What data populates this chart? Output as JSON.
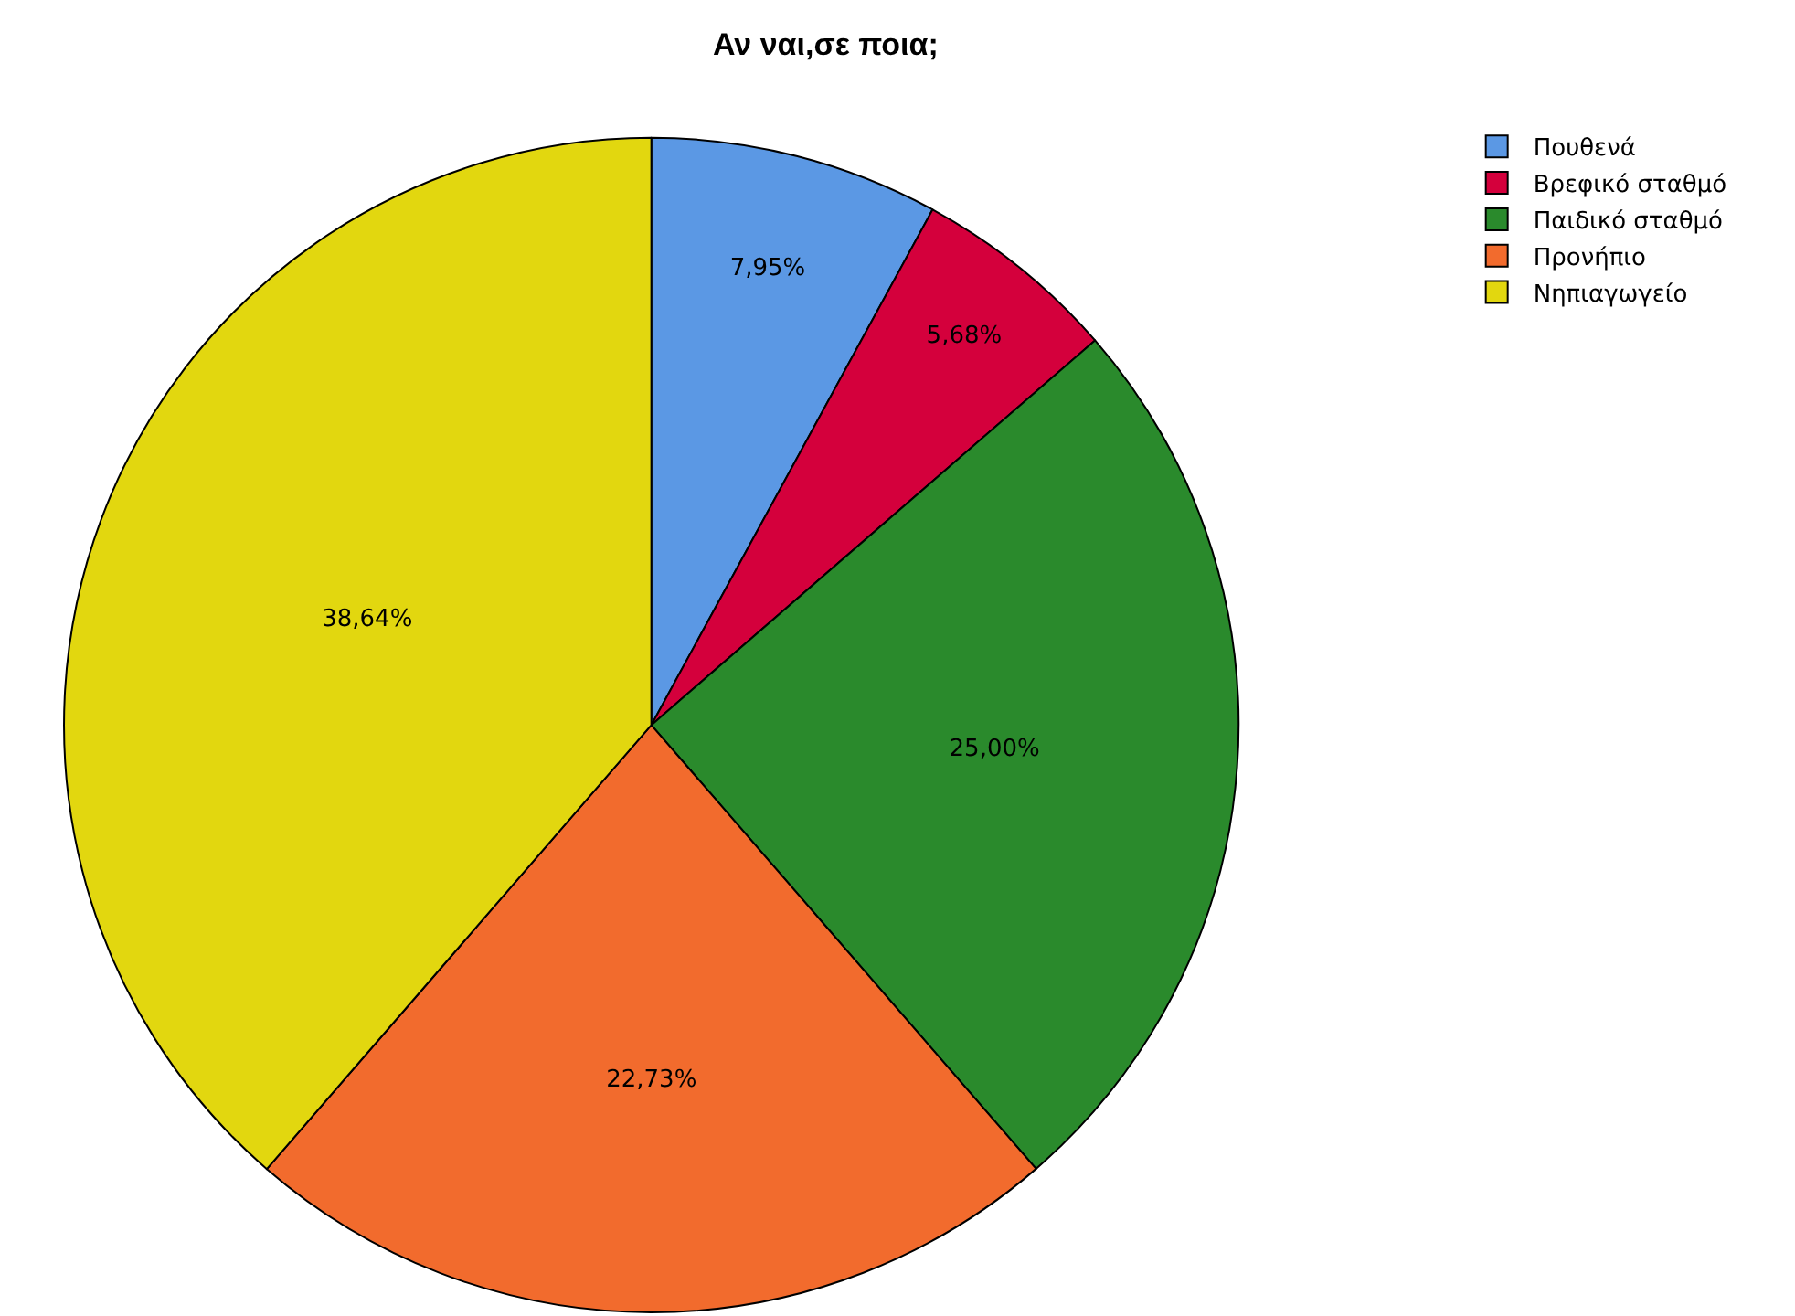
{
  "chart_data": {
    "type": "pie",
    "title": "Αν ναι,σε ποια;",
    "categories": [
      "Πουθενά",
      "Βρεφικό σταθμό",
      "Παιδικό σταθμό",
      "Προνήπιο",
      "Νηπιαγωγείο"
    ],
    "values": [
      7.95,
      5.68,
      25.0,
      22.73,
      38.64
    ],
    "colors": [
      "#5b98e4",
      "#d4003c",
      "#2a8a2c",
      "#f26b2d",
      "#e2d70f"
    ],
    "value_labels": [
      "7,95%",
      "5,68%",
      "25,00%",
      "22,73%",
      "38,64%"
    ],
    "legend": "top right"
  }
}
